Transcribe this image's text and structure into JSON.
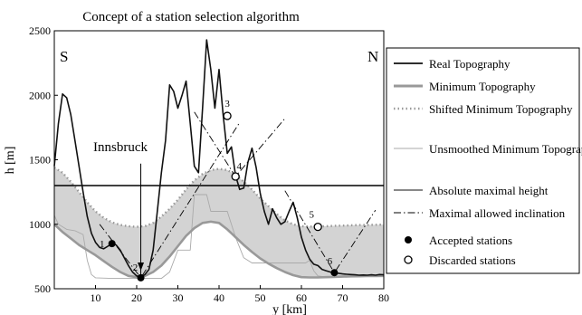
{
  "chart_data": {
    "type": "line",
    "title": "Concept of a station selection algorithm",
    "xlabel": "y [km]",
    "ylabel": "h [m]",
    "xlim": [
      0,
      80
    ],
    "ylim": [
      500,
      2500
    ],
    "xticks": [
      10,
      20,
      30,
      40,
      50,
      60,
      70,
      80
    ],
    "yticks": [
      500,
      1000,
      1500,
      2000,
      2500
    ],
    "grid": false,
    "legend_position": "right",
    "annotations": {
      "south": "S",
      "north": "N",
      "innsbruck": "Innsbruck"
    },
    "innsbruck_arrow": {
      "x": 21,
      "y_from": 1470,
      "y_to": 640
    },
    "series": [
      {
        "name": "Real Topography",
        "color": "#111111",
        "x": [
          0,
          1,
          2,
          3,
          4,
          5,
          6,
          7,
          8,
          9,
          10,
          11,
          12,
          13,
          14,
          15,
          16,
          17,
          18,
          19,
          20,
          21,
          22,
          23,
          24,
          25,
          26,
          27,
          28,
          29,
          30,
          31,
          32,
          33,
          34,
          35,
          36,
          37,
          38,
          39,
          40,
          41,
          42,
          43,
          44,
          45,
          46,
          47,
          48,
          49,
          50,
          51,
          52,
          53,
          54,
          55,
          56,
          57,
          58,
          59,
          60,
          61,
          62,
          63,
          64,
          65,
          66,
          67,
          68,
          69,
          70,
          71,
          72,
          73,
          74,
          75,
          76,
          77,
          78,
          79,
          80
        ],
        "y": [
          1450,
          1780,
          2010,
          1980,
          1850,
          1650,
          1450,
          1250,
          1060,
          930,
          860,
          820,
          810,
          830,
          850,
          840,
          800,
          740,
          680,
          630,
          600,
          590,
          610,
          650,
          800,
          1100,
          1400,
          1650,
          2080,
          2030,
          1900,
          2000,
          2110,
          1780,
          1450,
          1400,
          1900,
          2430,
          2200,
          1900,
          2200,
          1850,
          1550,
          1600,
          1380,
          1270,
          1280,
          1480,
          1590,
          1440,
          1240,
          1100,
          1000,
          1120,
          1050,
          1000,
          1020,
          1100,
          1170,
          1050,
          900,
          800,
          730,
          690,
          680,
          650,
          640,
          630,
          625,
          620,
          615,
          612,
          610,
          608,
          605,
          607,
          605,
          608,
          605,
          610,
          608
        ]
      },
      {
        "name": "Minimum Topography",
        "color": "#999999",
        "x": [
          0,
          2,
          4,
          6,
          8,
          10,
          12,
          14,
          16,
          18,
          20,
          22,
          24,
          26,
          28,
          30,
          32,
          34,
          36,
          38,
          40,
          42,
          44,
          46,
          48,
          50,
          52,
          54,
          56,
          58,
          60,
          62,
          64,
          66,
          68,
          70,
          72,
          74,
          76,
          78,
          80
        ],
        "y": [
          1000,
          940,
          890,
          840,
          800,
          760,
          715,
          670,
          630,
          600,
          590,
          600,
          630,
          680,
          750,
          830,
          910,
          970,
          1010,
          1020,
          1010,
          960,
          900,
          840,
          785,
          735,
          695,
          660,
          630,
          605,
          590,
          588,
          588,
          590,
          592,
          594,
          596,
          597,
          598,
          599,
          600
        ]
      },
      {
        "name": "Shifted Minimum Topography",
        "color": "#999999",
        "x": [
          0,
          2,
          4,
          6,
          8,
          10,
          12,
          14,
          16,
          18,
          20,
          22,
          24,
          26,
          28,
          30,
          32,
          34,
          36,
          38,
          40,
          42,
          44,
          46,
          48,
          50,
          52,
          54,
          56,
          58,
          60,
          62,
          64,
          66,
          68,
          70,
          72,
          74,
          76,
          78,
          80
        ],
        "y": [
          1440,
          1400,
          1330,
          1250,
          1170,
          1100,
          1050,
          1015,
          995,
          985,
          980,
          985,
          1010,
          1060,
          1120,
          1190,
          1270,
          1340,
          1390,
          1420,
          1430,
          1420,
          1385,
          1330,
          1270,
          1200,
          1140,
          1080,
          1030,
          1000,
          985,
          982,
          982,
          985,
          988,
          990,
          992,
          994,
          995,
          996,
          997
        ]
      },
      {
        "name": "Unsmoothed Minimum Topography",
        "color": "#aaaaaa",
        "x": [
          0,
          1,
          3,
          5,
          7,
          8,
          9,
          10,
          14,
          16,
          18,
          20,
          22,
          24,
          26,
          28,
          30,
          33,
          34,
          35,
          36,
          37,
          38,
          39,
          40,
          42,
          44,
          46,
          48,
          50,
          52,
          56,
          58,
          60,
          61,
          62,
          63,
          64,
          65,
          66,
          68,
          70,
          72,
          74,
          76,
          78,
          80
        ],
        "y": [
          1070,
          1000,
          960,
          950,
          920,
          720,
          610,
          585,
          580,
          580,
          580,
          580,
          580,
          580,
          580,
          630,
          800,
          800,
          1230,
          1230,
          1230,
          1230,
          1100,
          1100,
          1100,
          1100,
          900,
          740,
          700,
          700,
          700,
          700,
          700,
          700,
          700,
          720,
          640,
          600,
          595,
          595,
          595,
          595,
          595,
          595,
          595,
          595,
          595
        ]
      },
      {
        "name": "Absolute maximal height",
        "color": "#000000",
        "x": [
          0,
          80
        ],
        "y": [
          1300,
          1300
        ]
      }
    ],
    "inclination_lines": [
      {
        "name": "Maximal allowed inclination",
        "x": [
          11,
          21,
          45
        ],
        "y": [
          1000,
          585,
          1790
        ]
      },
      {
        "name": "Maximal allowed inclination",
        "x": [
          34,
          44,
          56
        ],
        "y": [
          1870,
          1370,
          1820
        ]
      },
      {
        "name": "Maximal allowed inclination",
        "x": [
          56,
          68,
          78
        ],
        "y": [
          1260,
          625,
          1110
        ]
      }
    ],
    "accepted_stations": {
      "name": "Accepted stations",
      "points": [
        {
          "label": "1",
          "x": 14,
          "y": 850
        },
        {
          "label": "2",
          "x": 21,
          "y": 585
        },
        {
          "label": "6",
          "x": 68,
          "y": 625
        }
      ]
    },
    "discarded_stations": {
      "name": "Discarded stations",
      "points": [
        {
          "label": "3",
          "x": 42,
          "y": 1840
        },
        {
          "label": "4",
          "x": 44,
          "y": 1370
        },
        {
          "label": "5",
          "x": 64,
          "y": 980
        }
      ]
    },
    "legend": [
      {
        "label": "Real Topography",
        "style": "solid-black"
      },
      {
        "label": "Minimum Topography",
        "style": "solid-gray-thick"
      },
      {
        "label": "Shifted Minimum Topography",
        "style": "dotted-gray"
      },
      {
        "label": "Unsmoothed Minimum Topography",
        "style": "solid-gray-thin"
      },
      {
        "label": "Absolute maximal height",
        "style": "solid-gray-medium"
      },
      {
        "label": "Maximal allowed inclination",
        "style": "dashdot"
      },
      {
        "label": "Accepted stations",
        "style": "filled-dot"
      },
      {
        "label": "Discarded stations",
        "style": "open-dot"
      }
    ]
  }
}
